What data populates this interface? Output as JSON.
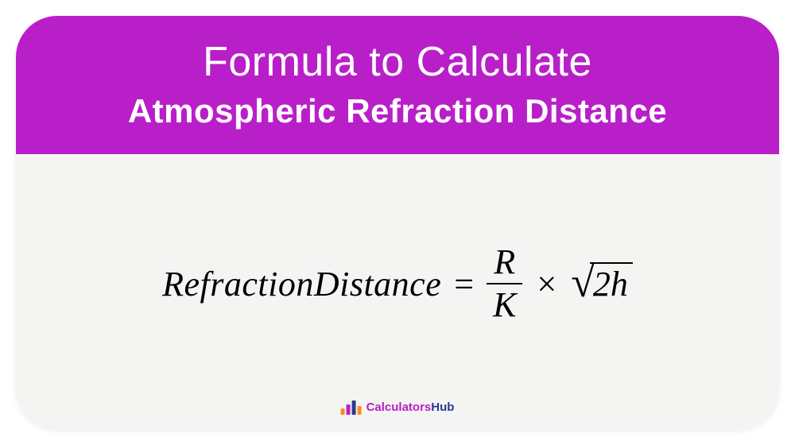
{
  "card": {
    "border_radius": 52,
    "header": {
      "background_color": "#b91fc9",
      "text_color": "#ffffff",
      "line1": "Formula to Calculate",
      "line1_fontsize": 52,
      "line1_weight": 400,
      "line2": "Atmospheric Refraction Distance",
      "line2_fontsize": 42,
      "line2_weight": 700
    },
    "body": {
      "background_color": "#f4f4f2",
      "formula": {
        "lhs": "RefractionDistance",
        "equals": "=",
        "fraction": {
          "numerator": "R",
          "denominator": "K"
        },
        "times": "×",
        "sqrt_content": "2h",
        "fontsize": 44,
        "color": "#000000",
        "font_family": "serif-italic"
      }
    },
    "logo": {
      "text_part1": "Calculators",
      "text_part2": "Hub",
      "color1": "#b91fc9",
      "color2": "#2b3a8f",
      "bars": [
        {
          "height": 8,
          "color": "#ff8a1e"
        },
        {
          "height": 13,
          "color": "#b91fc9"
        },
        {
          "height": 18,
          "color": "#2b3a8f"
        },
        {
          "height": 11,
          "color": "#ff8a1e"
        }
      ]
    }
  }
}
